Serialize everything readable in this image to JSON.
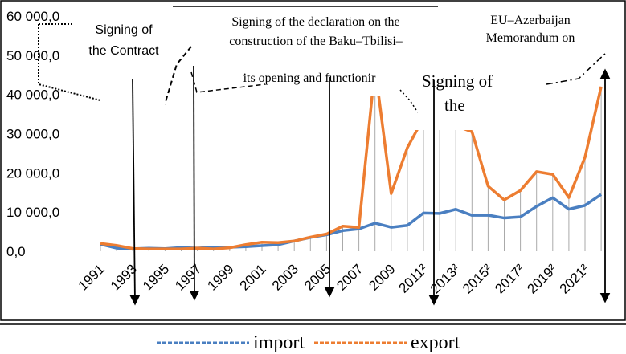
{
  "chart_data": {
    "type": "line",
    "categories": [
      "1991",
      null,
      "1993",
      null,
      "1995",
      null,
      "1997",
      null,
      "1999",
      null,
      "2001",
      null,
      "2003",
      null,
      "2005",
      null,
      "2007",
      null,
      "2009",
      null,
      "2011²",
      null,
      "2013²",
      null,
      "2015²",
      null,
      "2017²",
      null,
      "2019²",
      null,
      "2021²",
      null
    ],
    "series": [
      {
        "name": "import",
        "color": "#4a7fc1",
        "values": [
          1800,
          800,
          650,
          780,
          670,
          960,
          790,
          1080,
          1030,
          1170,
          1430,
          1670,
          2630,
          3520,
          4210,
          5260,
          5710,
          7170,
          6120,
          6600,
          9750,
          9650,
          10700,
          9180,
          9210,
          8490,
          8780,
          11460,
          13650,
          10730,
          11700,
          14500
        ]
      },
      {
        "name": "export",
        "color": "#ed7d31",
        "values": [
          2000,
          1500,
          700,
          600,
          600,
          600,
          800,
          600,
          900,
          1700,
          2300,
          2200,
          2600,
          3600,
          4400,
          6400,
          6100,
          47000,
          14700,
          26400,
          34000,
          32600,
          32000,
          30500,
          16600,
          13100,
          15500,
          20300,
          19600,
          13700,
          24000,
          42000
        ]
      }
    ],
    "ylim": [
      0,
      60000
    ],
    "yticks": [
      {
        "value": 0,
        "label": "0,0"
      },
      {
        "value": 10000,
        "label": "10 000,0"
      },
      {
        "value": 20000,
        "label": "20 000,0"
      },
      {
        "value": 30000,
        "label": "30 000,0"
      },
      {
        "value": 40000,
        "label": "40 000,0"
      },
      {
        "value": 50000,
        "label": "50 000,0"
      },
      {
        "value": 60000,
        "label": "60 000,0"
      }
    ],
    "annotations": [
      "Signing of",
      "the Contract",
      "Signing of the declaration on the",
      "construction of the Baku–Tbilisi–",
      "its opening and functionir",
      "Signing of",
      "the",
      "EU–Azerbaijan",
      "Memorandum on"
    ],
    "legend": "bottom"
  }
}
